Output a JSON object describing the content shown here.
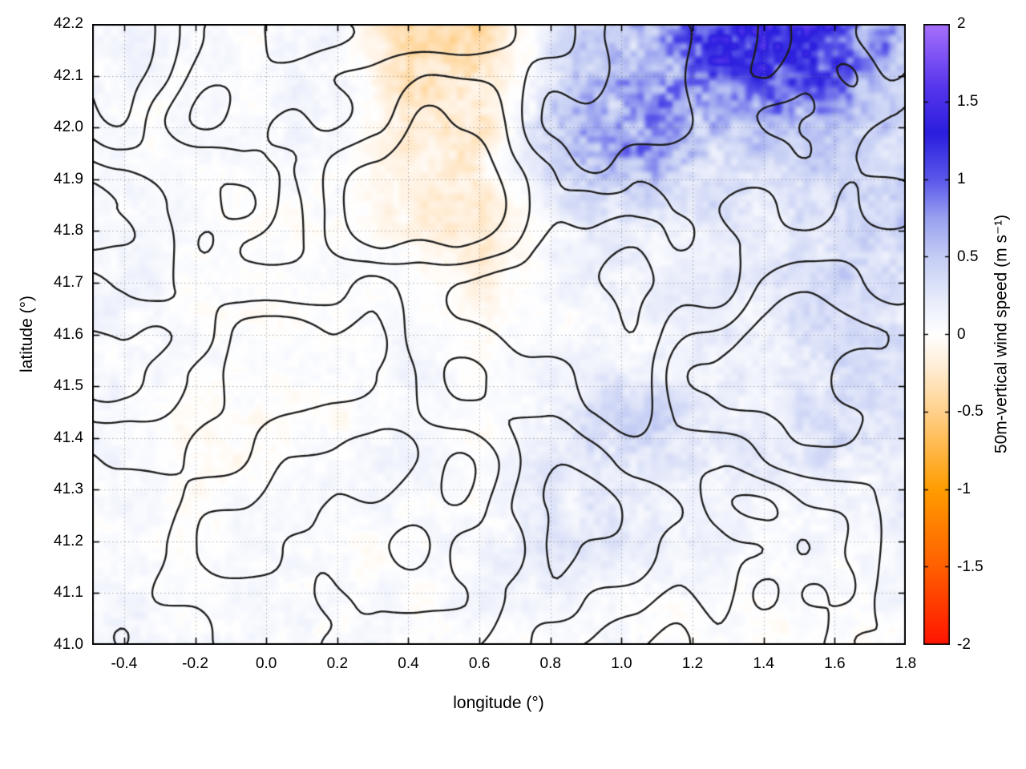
{
  "chart_data": {
    "type": "heatmap",
    "subtype": "geographic wind-field map with black contour overlay",
    "title": "",
    "xlabel": "longitude (°)",
    "ylabel": "latitude (°)",
    "xlim": [
      -0.49,
      1.8
    ],
    "ylim": [
      41.0,
      42.2
    ],
    "x_ticks": [
      -0.4,
      -0.2,
      0.0,
      0.2,
      0.4,
      0.6,
      0.8,
      1.0,
      1.2,
      1.4,
      1.6,
      1.8
    ],
    "x_tick_labels": [
      "-0.4",
      "-0.2",
      "0.0",
      "0.2",
      "0.4",
      "0.6",
      "0.8",
      "1.0",
      "1.2",
      "1.4",
      "1.6",
      "1.8"
    ],
    "y_ticks": [
      41.0,
      41.1,
      41.2,
      41.3,
      41.4,
      41.5,
      41.6,
      41.7,
      41.8,
      41.9,
      42.0,
      42.1,
      42.2
    ],
    "y_tick_labels": [
      "41.0",
      "41.1",
      "41.2",
      "41.3",
      "41.4",
      "41.5",
      "41.6",
      "41.7",
      "41.8",
      "41.9",
      "42.0",
      "42.1",
      "42.2"
    ],
    "grid": "dotted gray lines at major ticks",
    "border_color": "#000000",
    "contour_overlay": {
      "color": "#1c1c1c",
      "style": "solid",
      "description": "black terrain/feature contour lines overlaid across the whole map"
    },
    "colorbar": {
      "label": "50m-vertical wind speed (m s⁻¹)",
      "range": [
        -2,
        2
      ],
      "tick_values": [
        2,
        1.5,
        1,
        0.5,
        0,
        -0.5,
        -1,
        -1.5,
        -2
      ],
      "tick_labels": [
        "2",
        "1.5",
        "1",
        "0.5",
        "0",
        "-0.5",
        "-1",
        "-1.5",
        "-2"
      ],
      "stops": [
        {
          "v": -2.0,
          "c": "#ff1400"
        },
        {
          "v": -1.5,
          "c": "#ff5f00"
        },
        {
          "v": -1.0,
          "c": "#ff9c00"
        },
        {
          "v": -0.5,
          "c": "#ffd08a"
        },
        {
          "v": -0.2,
          "c": "#ffeed8"
        },
        {
          "v": 0.0,
          "c": "#ffffff"
        },
        {
          "v": 0.2,
          "c": "#eaeefb"
        },
        {
          "v": 0.5,
          "c": "#c4cdf4"
        },
        {
          "v": 0.75,
          "c": "#99a1f0"
        },
        {
          "v": 1.0,
          "c": "#5a57ea"
        },
        {
          "v": 1.3,
          "c": "#2b1ede"
        },
        {
          "v": 1.6,
          "c": "#5736ec"
        },
        {
          "v": 2.0,
          "c": "#a770fb"
        }
      ]
    },
    "field": {
      "units": "m/s",
      "description": "coarse estimate of the 50m vertical wind speed field; rows top-to-bottom lat 42.2 to 41.0, cols lon -0.4 to 1.8; mostly near 0 (white), strong updrafts (blue/purple) in the NE corner and near lon 1.0 / lat 42.0, downdraft streaks (orange) near lon 0.4-0.7 / lat 41.8-42.2",
      "lon": [
        -0.4,
        -0.2,
        0.0,
        0.2,
        0.4,
        0.6,
        0.8,
        1.0,
        1.2,
        1.4,
        1.6,
        1.8
      ],
      "lat": [
        42.2,
        42.0,
        41.8,
        41.6,
        41.4,
        41.2,
        41.0
      ],
      "values": [
        [
          0.1,
          0.05,
          0.05,
          0.1,
          -0.3,
          -0.35,
          0.15,
          0.5,
          1.1,
          1.5,
          1.2,
          0.6
        ],
        [
          0.05,
          0.05,
          0.05,
          0.1,
          -0.2,
          -0.25,
          0.5,
          1.0,
          0.7,
          0.5,
          0.45,
          0.35
        ],
        [
          0.05,
          0.0,
          0.0,
          0.05,
          -0.1,
          -0.2,
          0.1,
          0.25,
          0.15,
          0.2,
          0.3,
          0.4
        ],
        [
          0.1,
          0.05,
          0.0,
          0.0,
          0.05,
          0.0,
          0.05,
          0.1,
          0.1,
          0.2,
          0.3,
          0.3
        ],
        [
          0.05,
          -0.05,
          0.0,
          0.05,
          0.1,
          -0.05,
          0.2,
          0.4,
          0.3,
          0.2,
          0.3,
          0.2
        ],
        [
          0.05,
          0.0,
          0.05,
          0.05,
          0.0,
          0.1,
          0.15,
          0.2,
          0.1,
          0.1,
          0.05,
          0.1
        ],
        [
          0.1,
          0.05,
          0.05,
          0.1,
          0.05,
          0.05,
          0.05,
          0.05,
          0.0,
          0.0,
          0.0,
          0.05
        ]
      ]
    }
  }
}
